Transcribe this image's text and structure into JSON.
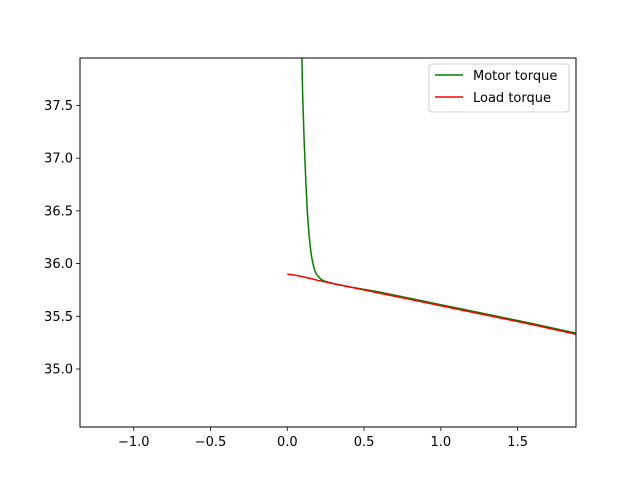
{
  "chart_data": {
    "type": "line",
    "title": "",
    "xlabel": "",
    "ylabel": "",
    "xlim": [
      -1.35,
      1.88
    ],
    "ylim": [
      34.45,
      37.95
    ],
    "xticks": [
      -1.0,
      -0.5,
      0.0,
      0.5,
      1.0,
      1.5
    ],
    "xtick_labels": [
      "−1.0",
      "−0.5",
      "0.0",
      "0.5",
      "1.0",
      "1.5"
    ],
    "yticks": [
      35.0,
      35.5,
      36.0,
      36.5,
      37.0,
      37.5
    ],
    "ytick_labels": [
      "35.0",
      "35.5",
      "36.0",
      "36.5",
      "37.0",
      "37.5"
    ],
    "grid": false,
    "legend_position": "top-right",
    "series": [
      {
        "name": "Motor torque",
        "color": "#008000",
        "x": [
          0.095,
          0.1,
          0.11,
          0.12,
          0.13,
          0.14,
          0.15,
          0.16,
          0.17,
          0.18,
          0.19,
          0.2,
          0.22,
          0.25,
          0.3,
          0.4,
          0.6,
          0.8,
          1.0,
          1.2,
          1.4,
          1.6,
          1.88
        ],
        "values": [
          37.95,
          37.6,
          37.15,
          36.8,
          36.5,
          36.3,
          36.15,
          36.05,
          35.98,
          35.93,
          35.9,
          35.88,
          35.85,
          35.83,
          35.81,
          35.78,
          35.73,
          35.67,
          35.61,
          35.55,
          35.49,
          35.43,
          35.34
        ]
      },
      {
        "name": "Load torque",
        "color": "#ff0000",
        "x": [
          0.0,
          0.05,
          0.1,
          0.15,
          0.2,
          0.3,
          0.4,
          0.6,
          0.8,
          1.0,
          1.2,
          1.4,
          1.6,
          1.88
        ],
        "values": [
          35.9,
          35.89,
          35.875,
          35.86,
          35.84,
          35.81,
          35.78,
          35.72,
          35.66,
          35.6,
          35.54,
          35.48,
          35.42,
          35.33
        ]
      }
    ]
  }
}
